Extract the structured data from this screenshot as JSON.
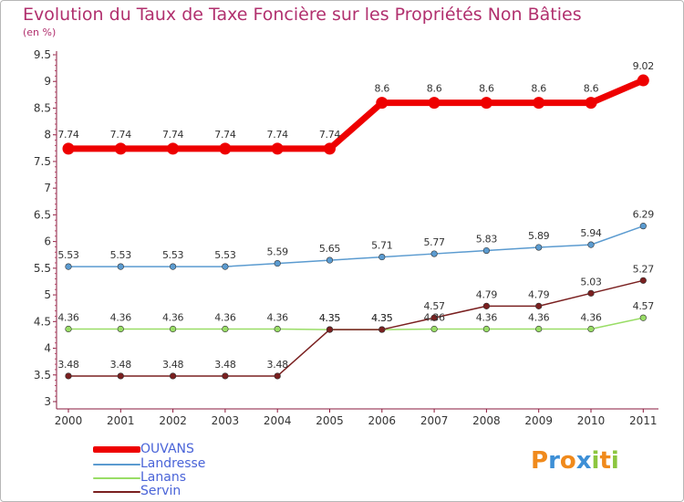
{
  "chart_data": {
    "type": "line",
    "title": "Evolution du Taux de Taxe Foncière sur les Propriétés Non Bâties",
    "subtitle": "(en %)",
    "categories": [
      "2000",
      "2001",
      "2002",
      "2003",
      "2004",
      "2005",
      "2006",
      "2007",
      "2008",
      "2009",
      "2010",
      "2011"
    ],
    "yticks": [
      "3",
      "3.5",
      "4",
      "4.5",
      "5",
      "5.5",
      "6",
      "6.5",
      "7",
      "7.5",
      "8",
      "8.5",
      "9",
      "9.5"
    ],
    "ylim": [
      3,
      9.5
    ],
    "grid": false,
    "legend_position": "bottom-left",
    "series": [
      {
        "name": "OUVANS",
        "color": "#ee0000",
        "values": [
          7.74,
          7.74,
          7.74,
          7.74,
          7.74,
          7.74,
          8.6,
          8.6,
          8.6,
          8.6,
          8.6,
          9.02
        ],
        "labels": [
          "7.74",
          "7.74",
          "7.74",
          "7.74",
          "7.74",
          "7.74",
          "8.6",
          "8.6",
          "8.6",
          "8.6",
          "8.6",
          "9.02"
        ]
      },
      {
        "name": "Landresse",
        "color": "#5b9bd0",
        "values": [
          5.53,
          5.53,
          5.53,
          5.53,
          5.59,
          5.65,
          5.71,
          5.77,
          5.83,
          5.89,
          5.94,
          6.29
        ],
        "labels": [
          "5.53",
          "5.53",
          "5.53",
          "5.53",
          "5.59",
          "5.65",
          "5.71",
          "5.77",
          "5.83",
          "5.89",
          "5.94",
          "6.29"
        ]
      },
      {
        "name": "Lanans",
        "color": "#99dd66",
        "values": [
          4.36,
          4.36,
          4.36,
          4.36,
          4.36,
          4.35,
          4.35,
          4.36,
          4.36,
          4.36,
          4.36,
          4.57
        ],
        "labels": [
          "4.36",
          "4.36",
          "4.36",
          "4.36",
          "4.36",
          "4.35",
          "4.35",
          "4.36",
          "4.36",
          "4.36",
          "4.36",
          "4.57"
        ]
      },
      {
        "name": "Servin",
        "color": "#7a2020",
        "values": [
          3.48,
          3.48,
          3.48,
          3.48,
          3.48,
          4.35,
          4.35,
          4.57,
          4.79,
          4.79,
          5.03,
          5.27
        ],
        "labels": [
          "3.48",
          "3.48",
          "3.48",
          "3.48",
          "3.48",
          "4.35",
          "4.35",
          "4.57",
          "4.79",
          "4.79",
          "5.03",
          "5.27"
        ]
      }
    ]
  },
  "logo": {
    "letters": [
      "P",
      "r",
      "o",
      "x",
      "i",
      "t",
      "i"
    ],
    "colors": [
      "#f08a1c",
      "#3d8fd6",
      "#f08a1c",
      "#3d8fd6",
      "#8cc63f",
      "#f08a1c",
      "#8cc63f"
    ]
  }
}
